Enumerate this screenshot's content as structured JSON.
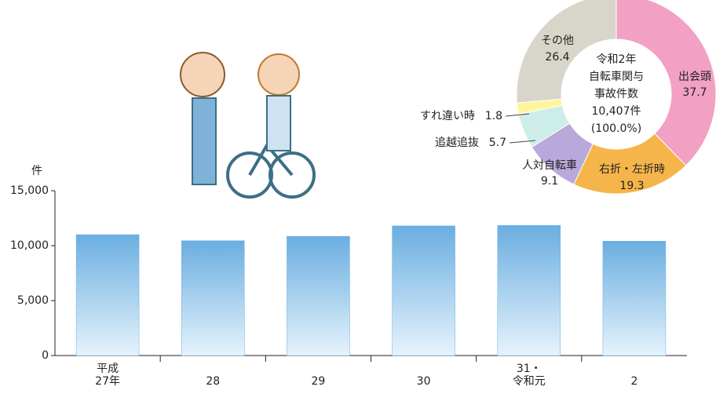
{
  "chart_data": [
    {
      "type": "bar",
      "y_label": "件",
      "categories": [
        "平成\n27年",
        "28",
        "29",
        "30",
        "31・\n令和元",
        "2"
      ],
      "values": [
        11000,
        10450,
        10850,
        11800,
        11850,
        10407
      ],
      "color": "#6aaee0",
      "ylim": [
        0,
        15000
      ],
      "yticks": [
        0,
        {
          "value": 5000,
          "label": "5,000"
        },
        {
          "value": 10000,
          "label": "10,000"
        },
        {
          "value": 15000,
          "label": "15,000"
        }
      ]
    },
    {
      "type": "pie",
      "center_text": [
        "令和2年",
        "自転車関与",
        "事故件数",
        "10,407件",
        "(100.0%)"
      ],
      "categories": [
        "出会頭",
        "右折・左折時",
        "人対自転車",
        "追越追抜",
        "すれ違い時",
        "その他"
      ],
      "values": [
        37.7,
        19.3,
        9.1,
        5.7,
        1.8,
        26.4
      ],
      "colors": [
        "#f2a0c4",
        "#f5b54a",
        "#b9a9da",
        "#cdeee8",
        "#fff59a",
        "#d8d5cb"
      ]
    }
  ]
}
